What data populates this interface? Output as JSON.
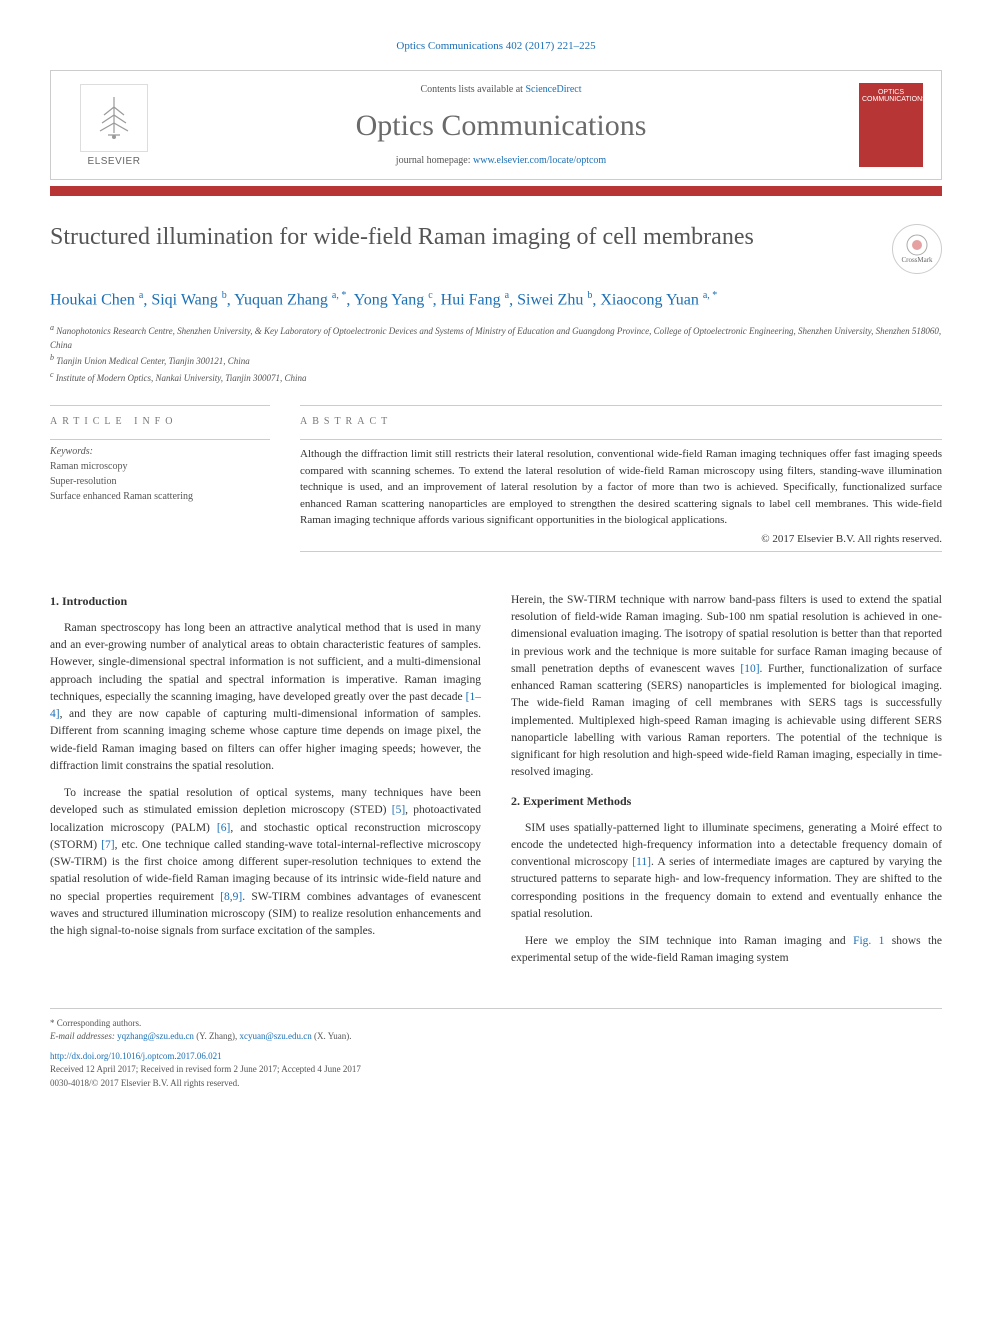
{
  "page_header": "Optics Communications 402 (2017) 221–225",
  "masthead": {
    "contents_text": "Contents lists available at ",
    "contents_link": "ScienceDirect",
    "journal_name": "Optics Communications",
    "homepage_text": "journal homepage: ",
    "homepage_link": "www.elsevier.com/locate/optcom",
    "publisher_label": "ELSEVIER",
    "cover_text": "OPTICS COMMUNICATIONS"
  },
  "colors": {
    "accent": "#b83535",
    "link": "#1a6fb5",
    "text": "#333333",
    "muted": "#555555",
    "border": "#cccccc",
    "background": "#ffffff"
  },
  "article": {
    "title": "Structured illumination for wide-field Raman imaging of cell membranes",
    "crossmark": "CrossMark",
    "authors_html": "Houkai Chen <sup>a</sup>, Siqi Wang <sup>b</sup>, Yuquan Zhang <sup>a, *</sup>, Yong Yang <sup>c</sup>, Hui Fang <sup>a</sup>, Siwei Zhu <sup>b</sup>, Xiaocong Yuan <sup>a, *</sup>",
    "affiliations": [
      "a Nanophotonics Research Centre, Shenzhen University, & Key Laboratory of Optoelectronic Devices and Systems of Ministry of Education and Guangdong Province, College of Optoelectronic Engineering, Shenzhen University, Shenzhen 518060, China",
      "b Tianjin Union Medical Center, Tianjin 300121, China",
      "c Institute of Modern Optics, Nankai University, Tianjin 300071, China"
    ]
  },
  "info": {
    "heading": "ARTICLE INFO",
    "keywords_label": "Keywords:",
    "keywords": [
      "Raman microscopy",
      "Super-resolution",
      "Surface enhanced Raman scattering"
    ]
  },
  "abstract": {
    "heading": "ABSTRACT",
    "text": "Although the diffraction limit still restricts their lateral resolution, conventional wide-field Raman imaging techniques offer fast imaging speeds compared with scanning schemes. To extend the lateral resolution of wide-field Raman microscopy using filters, standing-wave illumination technique is used, and an improvement of lateral resolution by a factor of more than two is achieved. Specifically, functionalized surface enhanced Raman scattering nanoparticles are employed to strengthen the desired scattering signals to label cell membranes. This wide-field Raman imaging technique affords various significant opportunities in the biological applications.",
    "copyright": "© 2017 Elsevier B.V. All rights reserved."
  },
  "body": {
    "sec1": {
      "heading": "1. Introduction",
      "p1": "Raman spectroscopy has long been an attractive analytical method that is used in many and an ever-growing number of analytical areas to obtain characteristic features of samples. However, single-dimensional spectral information is not sufficient, and a multi-dimensional approach including the spatial and spectral information is imperative. Raman imaging techniques, especially the scanning imaging, have developed greatly over the past decade [1–4], and they are now capable of capturing multi-dimensional information of samples. Different from scanning imaging scheme whose capture time depends on image pixel, the wide-field Raman imaging based on filters can offer higher imaging speeds; however, the diffraction limit constrains the spatial resolution.",
      "p2": "To increase the spatial resolution of optical systems, many techniques have been developed such as stimulated emission depletion microscopy (STED) [5], photoactivated localization microscopy (PALM) [6], and stochastic optical reconstruction microscopy (STORM) [7], etc. One technique called standing-wave total-internal-reflective microscopy (SW-TIRM) is the first choice among different super-resolution techniques to extend the spatial resolution of wide-field Raman imaging because of its intrinsic wide-field nature and no special properties requirement [8,9]. SW-TIRM combines advantages of evanescent waves and structured illumination microscopy (SIM) to realize resolution enhancements and the high signal-to-noise signals from surface excitation of the samples.",
      "p3": "Herein, the SW-TIRM technique with narrow band-pass filters is used to extend the spatial resolution of field-wide Raman imaging. Sub-100 nm spatial resolution is achieved in one-dimensional evaluation imaging. The isotropy of spatial resolution is better than that reported in previous work and the technique is more suitable for surface Raman imaging because of small penetration depths of evanescent waves [10]. Further, functionalization of surface enhanced Raman scattering (SERS) nanoparticles is implemented for biological imaging. The wide-field Raman imaging of cell membranes with SERS tags is successfully implemented. Multiplexed high-speed Raman imaging is achievable using different SERS nanoparticle labelling with various Raman reporters. The potential of the technique is significant for high resolution and high-speed wide-field Raman imaging, especially in time-resolved imaging."
    },
    "sec2": {
      "heading": "2. Experiment Methods",
      "p1": "SIM uses spatially-patterned light to illuminate specimens, generating a Moiré effect to encode the undetected high-frequency information into a detectable frequency domain of conventional microscopy [11]. A series of intermediate images are captured by varying the structured patterns to separate high- and low-frequency information. They are shifted to the corresponding positions in the frequency domain to extend and eventually enhance the spatial resolution.",
      "p2": "Here we employ the SIM technique into Raman imaging and Fig. 1 shows the experimental setup of the wide-field Raman imaging system"
    }
  },
  "footer": {
    "corresponding": "* Corresponding authors.",
    "emails_label": "E-mail addresses: ",
    "email1": "yqzhang@szu.edu.cn",
    "email1_name": " (Y. Zhang), ",
    "email2": "xcyuan@szu.edu.cn",
    "email2_name": " (X. Yuan).",
    "doi": "http://dx.doi.org/10.1016/j.optcom.2017.06.021",
    "received": "Received 12 April 2017; Received in revised form 2 June 2017; Accepted 4 June 2017",
    "issn": "0030-4018/© 2017 Elsevier B.V. All rights reserved."
  }
}
